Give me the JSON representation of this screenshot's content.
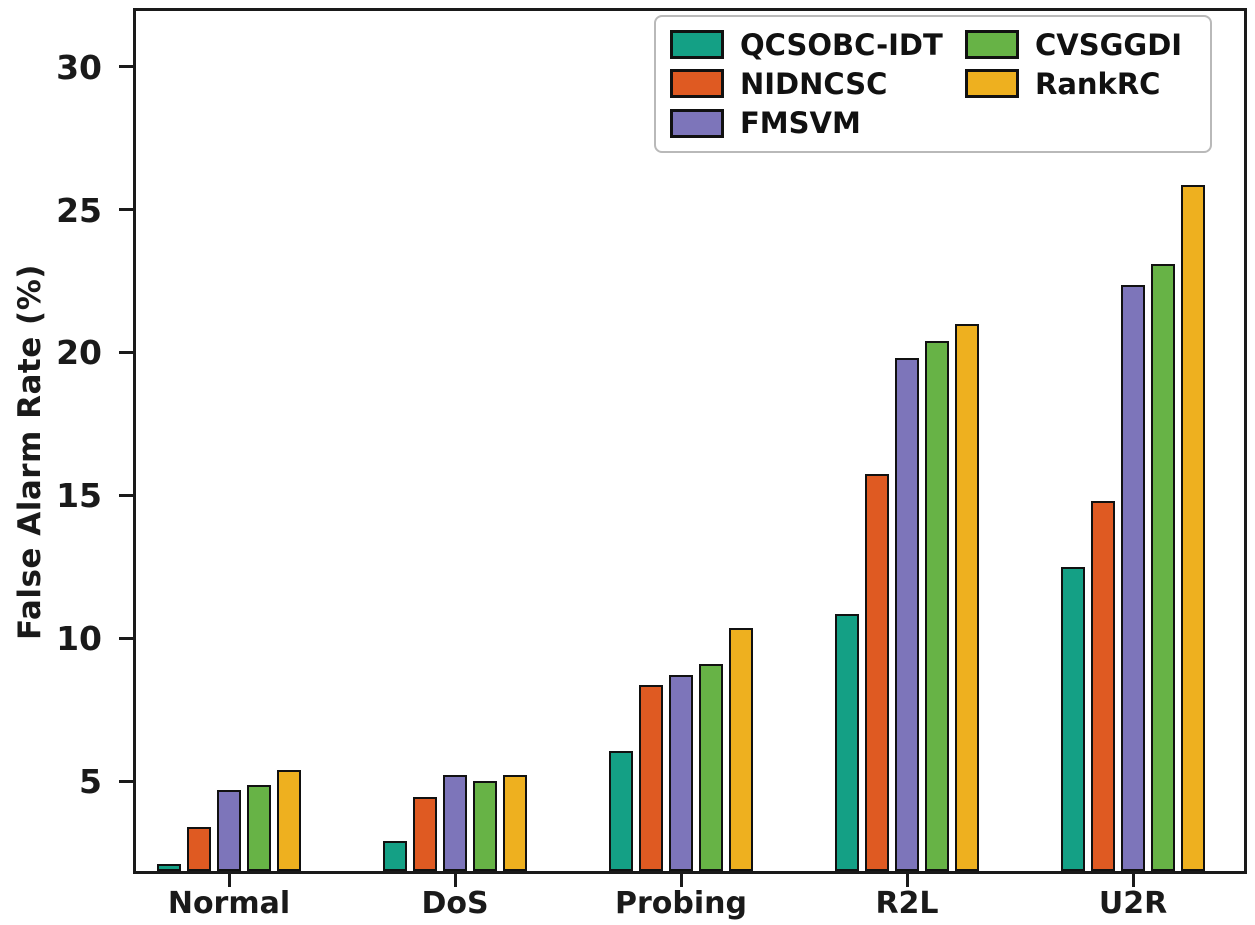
{
  "chart_data": {
    "type": "bar",
    "title": "",
    "xlabel": "",
    "ylabel": "False Alarm Rate (%)",
    "categories": [
      "Normal",
      "DoS",
      "Probing",
      "R2L",
      "U2R"
    ],
    "series": [
      {
        "name": "QCSOBC-IDT",
        "color": "#14a085",
        "values": [
          2.1,
          2.9,
          6.05,
          10.85,
          12.5
        ]
      },
      {
        "name": "NIDNCSC",
        "color": "#df5a22",
        "values": [
          3.4,
          4.45,
          8.35,
          15.75,
          14.8
        ]
      },
      {
        "name": "FMSVM",
        "color": "#7d75ba",
        "values": [
          4.7,
          5.2,
          8.7,
          19.8,
          22.35
        ]
      },
      {
        "name": "CVSGGDI",
        "color": "#67b346",
        "values": [
          4.85,
          5.0,
          9.1,
          20.4,
          23.1
        ]
      },
      {
        "name": "RankRC",
        "color": "#eeb01f",
        "values": [
          5.4,
          5.2,
          10.35,
          21.0,
          25.85
        ]
      }
    ],
    "yticks": [
      5,
      10,
      15,
      20,
      25,
      30
    ],
    "ylim": [
      1.85,
      31.95
    ],
    "grid": false,
    "legend_position": "upper right",
    "legend_columns": 2,
    "bar_edge_color": "#111111",
    "spine_color": "#1a1a1a",
    "background": "#ffffff"
  }
}
